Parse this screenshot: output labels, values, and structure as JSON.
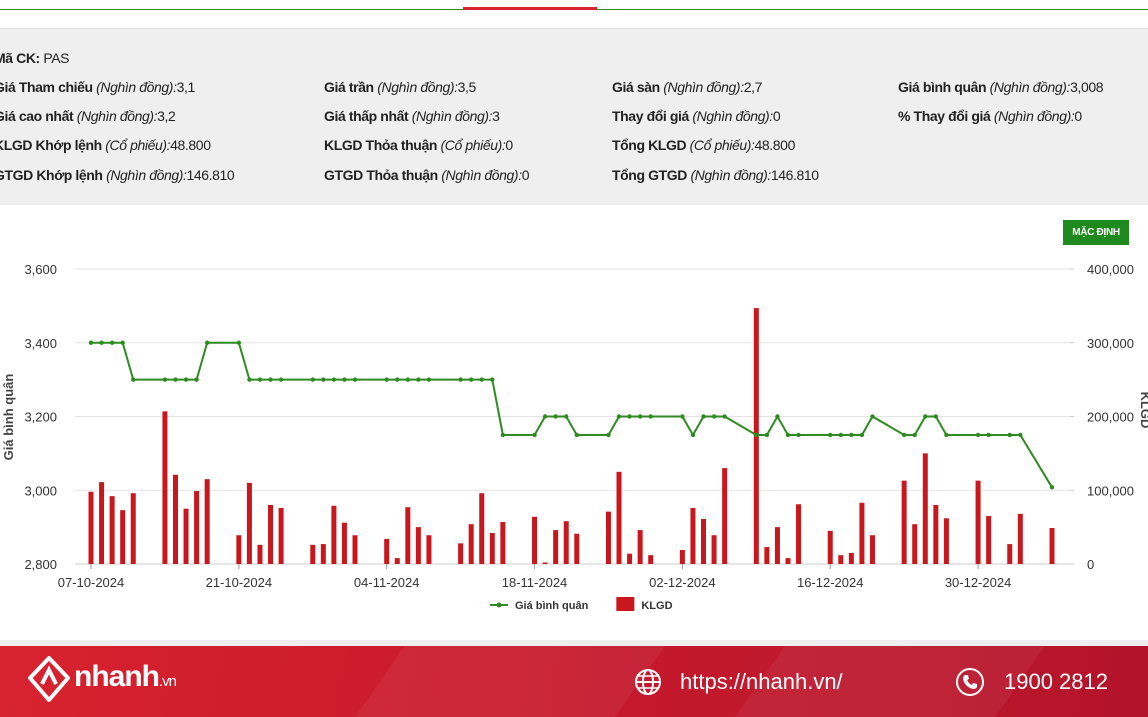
{
  "info": {
    "symbol_label": "Mã CK:",
    "symbol": "PAS",
    "rows": [
      [
        {
          "label": "Giá Tham chiếu",
          "unit": "(Nghìn đồng):",
          "value": "3,1"
        },
        {
          "label": "Giá trần",
          "unit": "(Nghìn đồng):",
          "value": "3,5"
        },
        {
          "label": "Giá sàn",
          "unit": "(Nghìn đồng):",
          "value": "2,7"
        },
        {
          "label": "Giá bình quân",
          "unit": "(Nghìn đồng):",
          "value": "3,008"
        }
      ],
      [
        {
          "label": "Giá cao nhất",
          "unit": "(Nghìn đồng):",
          "value": "3,2"
        },
        {
          "label": "Giá thấp nhất",
          "unit": "(Nghìn đồng):",
          "value": "3"
        },
        {
          "label": "Thay đổi giá",
          "unit": "(Nghìn đồng):",
          "value": "0"
        },
        {
          "label": "% Thay đổi giá",
          "unit": "(Nghìn đồng):",
          "value": "0"
        }
      ],
      [
        {
          "label": "KLGD Khớp lệnh",
          "unit": "(Cổ phiếu):",
          "value": "48.800"
        },
        {
          "label": "KLGD Thỏa thuận",
          "unit": "(Cổ phiếu):",
          "value": "0"
        },
        {
          "label": "Tổng KLGD",
          "unit": "(Cổ phiếu):",
          "value": "48.800"
        }
      ],
      [
        {
          "label": "GTGD Khớp lệnh",
          "unit": "(Nghìn đồng):",
          "value": "146.810"
        },
        {
          "label": "GTGD Thỏa thuận",
          "unit": "(Nghìn đồng):",
          "value": "0"
        },
        {
          "label": "Tổng GTGD",
          "unit": "(Nghìn đồng):",
          "value": "146.810"
        }
      ]
    ]
  },
  "button": "MẶC ĐỊNH",
  "chart_data": {
    "type": "combo",
    "y_label": "Giá bình quân",
    "y2_label": "KLGD",
    "grid": true,
    "legend": "bottom",
    "x": [
      "07-10-2024",
      "08-10-2024",
      "09-10-2024",
      "10-10-2024",
      "11-10-2024",
      "14-10-2024",
      "15-10-2024",
      "16-10-2024",
      "17-10-2024",
      "18-10-2024",
      "21-10-2024",
      "22-10-2024",
      "23-10-2024",
      "24-10-2024",
      "25-10-2024",
      "28-10-2024",
      "29-10-2024",
      "30-10-2024",
      "31-10-2024",
      "01-11-2024",
      "04-11-2024",
      "05-11-2024",
      "06-11-2024",
      "07-11-2024",
      "08-11-2024",
      "11-11-2024",
      "12-11-2024",
      "13-11-2024",
      "14-11-2024",
      "15-11-2024",
      "18-11-2024",
      "19-11-2024",
      "20-11-2024",
      "21-11-2024",
      "22-11-2024",
      "25-11-2024",
      "26-11-2024",
      "27-11-2024",
      "28-11-2024",
      "29-11-2024",
      "02-12-2024",
      "03-12-2024",
      "04-12-2024",
      "05-12-2024",
      "06-12-2024",
      "09-12-2024",
      "10-12-2024",
      "11-12-2024",
      "12-12-2024",
      "13-12-2024",
      "16-12-2024",
      "17-12-2024",
      "18-12-2024",
      "19-12-2024",
      "20-12-2024",
      "23-12-2024",
      "24-12-2024",
      "25-12-2024",
      "26-12-2024",
      "27-12-2024",
      "30-12-2024",
      "31-12-2024",
      "02-01-2025",
      "03-01-2025",
      "06-01-2025"
    ],
    "xticks": [
      "07-10-2024",
      "21-10-2024",
      "04-11-2024",
      "18-11-2024",
      "02-12-2024",
      "16-12-2024",
      "30-12-2024"
    ],
    "ylim": [
      2800,
      3600
    ],
    "yticks": [
      {
        "value": 2800,
        "label": "2,800"
      },
      {
        "value": 3000,
        "label": "3,000"
      },
      {
        "value": 3200,
        "label": "3,200"
      },
      {
        "value": 3400,
        "label": "3,400"
      },
      {
        "value": 3600,
        "label": "3,600"
      }
    ],
    "y2lim": [
      0,
      400000
    ],
    "y2ticks": [
      0,
      {
        "value": 100000,
        "label": "100,000"
      },
      {
        "value": 200000,
        "label": "200,000"
      },
      {
        "value": 300000,
        "label": "300,000"
      },
      {
        "value": 400000,
        "label": "400,000"
      }
    ],
    "series": [
      {
        "name": "Giá bình quân",
        "type": "line",
        "color": "#2e8b22",
        "values": [
          3400,
          3400,
          3400,
          3400,
          3300,
          3300,
          3300,
          3300,
          3300,
          3400,
          3400,
          3300,
          3300,
          3300,
          3300,
          3300,
          3300,
          3300,
          3300,
          3300,
          3300,
          3300,
          3300,
          3300,
          3300,
          3300,
          3300,
          3300,
          3300,
          3150,
          3150,
          3200,
          3200,
          3200,
          3150,
          3150,
          3200,
          3200,
          3200,
          3200,
          3200,
          3150,
          3200,
          3200,
          3200,
          3150,
          3150,
          3200,
          3150,
          3150,
          3150,
          3150,
          3150,
          3150,
          3200,
          3150,
          3150,
          3200,
          3200,
          3150,
          3150,
          3150,
          3150,
          3150,
          3008
        ]
      },
      {
        "name": "KLGD",
        "type": "bar",
        "axis": "y2",
        "color": "#c8181e",
        "values": [
          98000,
          111000,
          92000,
          73000,
          96000,
          207000,
          121000,
          75000,
          99000,
          115000,
          39000,
          110000,
          26000,
          80000,
          76000,
          26000,
          27000,
          79000,
          56000,
          39000,
          34000,
          8000,
          77000,
          50000,
          39000,
          28000,
          54000,
          96000,
          42000,
          57000,
          64000,
          2000,
          46000,
          58000,
          41000,
          71000,
          125000,
          14000,
          46000,
          12000,
          19000,
          76000,
          61000,
          39000,
          130000,
          347000,
          23000,
          50000,
          8000,
          81000,
          45000,
          12000,
          15000,
          83000,
          39000,
          113000,
          54000,
          150000,
          80000,
          62000,
          113000,
          65000,
          27000,
          68000,
          48800
        ]
      }
    ]
  },
  "footer": {
    "brand": "nhanh",
    "brand_suffix": ".vn",
    "url": "https://nhanh.vn/",
    "phone": "1900 2812"
  }
}
